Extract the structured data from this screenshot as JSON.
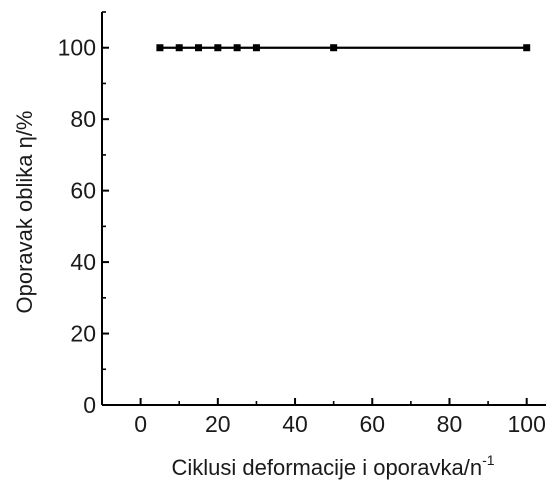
{
  "chart_data": {
    "type": "line",
    "xlabel": "Ciklusi deformacije i oporavka/n",
    "xlabel_sup": "-1",
    "ylabel": "Oporavak oblika η/%",
    "xlim": [
      -10,
      105
    ],
    "ylim": [
      0,
      110
    ],
    "x_ticks": [
      "0",
      "20",
      "40",
      "60",
      "80",
      "100"
    ],
    "y_ticks": [
      "0",
      "20",
      "40",
      "60",
      "80",
      "100"
    ],
    "grid": false,
    "series": [
      {
        "x": [
          5,
          10,
          15,
          20,
          25,
          30,
          50,
          100
        ],
        "values": [
          100,
          100,
          100,
          100,
          100,
          100,
          100,
          100
        ],
        "color": "#000000",
        "marker": "square"
      }
    ]
  }
}
